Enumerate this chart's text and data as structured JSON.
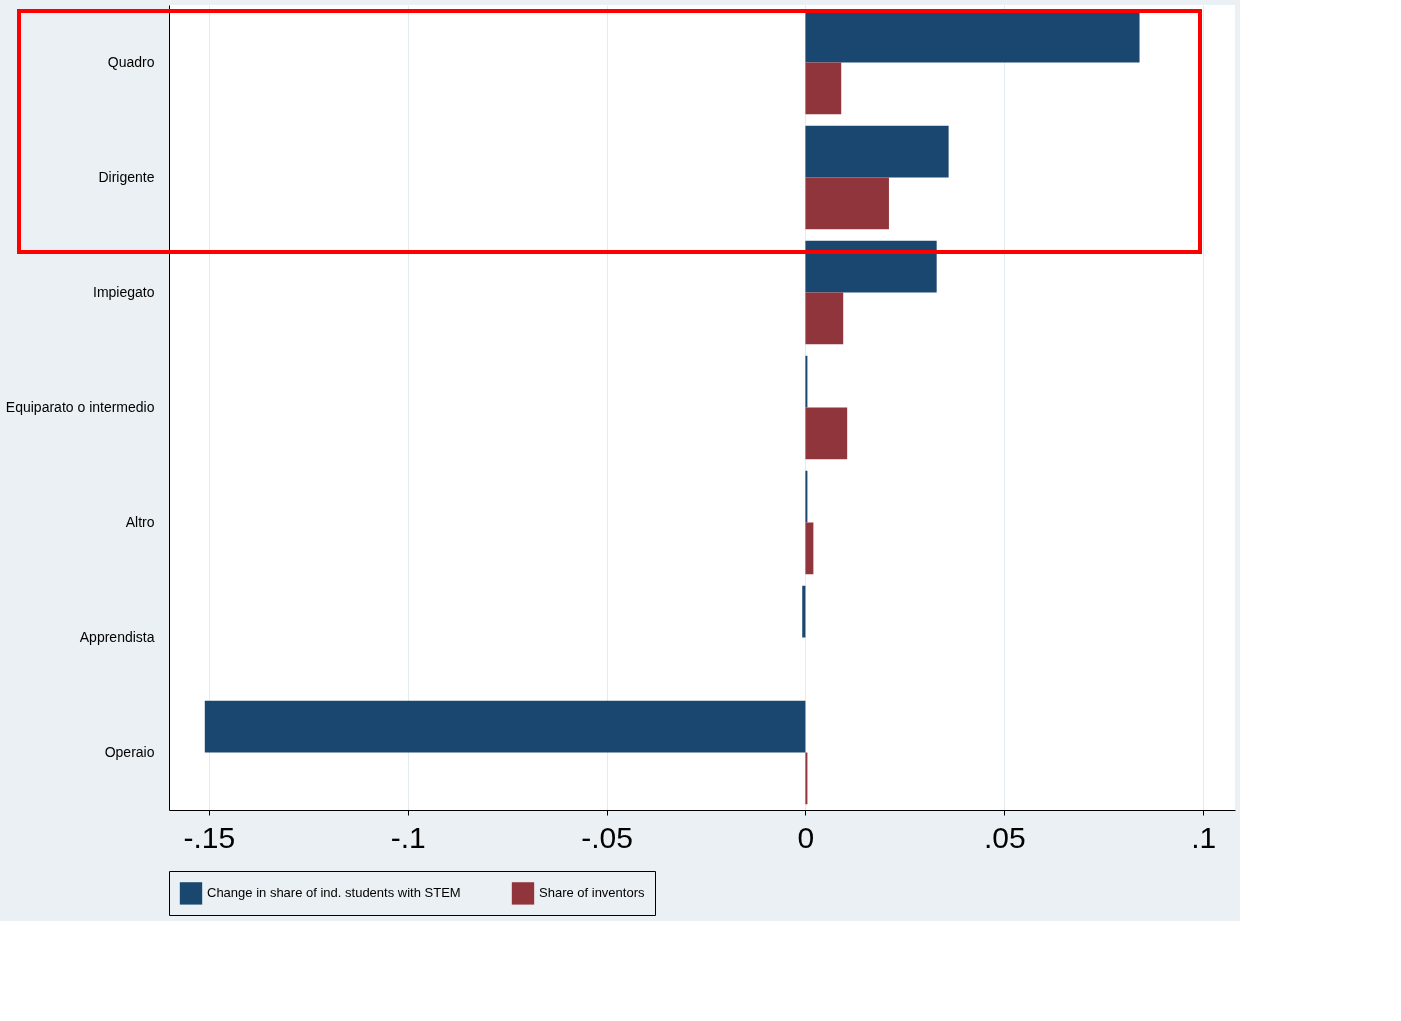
{
  "chart_data": {
    "type": "bar",
    "orientation": "horizontal",
    "categories": [
      "Quadro",
      "Dirigente",
      "Impiegato",
      "Equiparato o intermedio",
      "Altro",
      "Apprendista",
      "Operaio"
    ],
    "series": [
      {
        "name": "Change in share of ind. students with STEM",
        "color": "#1a476f",
        "values": [
          0.084,
          0.036,
          0.033,
          0.0005,
          0.0005,
          -0.0008,
          -0.151
        ]
      },
      {
        "name": "Share of inventors",
        "color": "#90353b",
        "values": [
          0.009,
          0.021,
          0.0095,
          0.0105,
          0.002,
          0,
          0.0005
        ]
      }
    ],
    "xlim": [
      -0.16,
      0.108
    ],
    "xticks": [
      {
        "value": -0.15,
        "label": "-.15"
      },
      {
        "value": -0.1,
        "label": "-.1"
      },
      {
        "value": -0.05,
        "label": "-.05"
      },
      0,
      {
        "value": 0.05,
        "label": ".05"
      },
      {
        "value": 0.1,
        "label": ".1"
      }
    ],
    "grid": "x",
    "legend": "bottom"
  }
}
